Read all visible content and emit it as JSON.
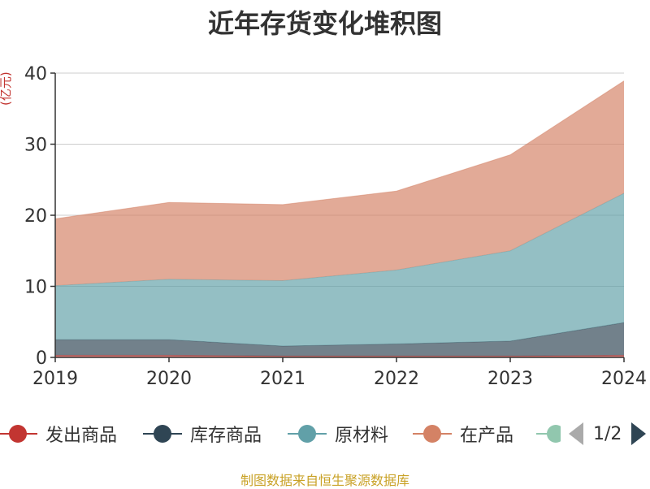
{
  "chart_data": {
    "type": "area",
    "stacked": true,
    "title": "近年存货变化堆积图",
    "ylabel": "(亿元)",
    "categories": [
      "2019",
      "2020",
      "2021",
      "2022",
      "2023",
      "2024"
    ],
    "ylim": [
      0,
      40
    ],
    "yticks": [
      0,
      10,
      20,
      30,
      40
    ],
    "grid": true,
    "legend_position": "bottom",
    "series": [
      {
        "name": "发出商品",
        "color": "#c23531",
        "values": [
          0.3,
          0.3,
          0.2,
          0.2,
          0.2,
          0.3
        ]
      },
      {
        "name": "库存商品",
        "color": "#2f4554",
        "values": [
          2.2,
          2.2,
          1.4,
          1.7,
          2.1,
          4.6
        ]
      },
      {
        "name": "原材料",
        "color": "#61a0a8",
        "values": [
          7.6,
          8.5,
          9.2,
          10.4,
          12.7,
          18.2
        ]
      },
      {
        "name": "在产品",
        "color": "#d48265",
        "values": [
          9.4,
          10.8,
          10.7,
          11.1,
          13.5,
          15.8
        ]
      }
    ]
  },
  "legend": {
    "items": [
      {
        "label": "发出商品",
        "color": "#c23531"
      },
      {
        "label": "库存商品",
        "color": "#2f4554"
      },
      {
        "label": "原材料",
        "color": "#61a0a8"
      },
      {
        "label": "在产品",
        "color": "#d48265"
      },
      {
        "label": "",
        "color": "#91c7ae"
      }
    ],
    "page_info": "1/2"
  },
  "source": "制图数据来自恒生聚源数据库"
}
